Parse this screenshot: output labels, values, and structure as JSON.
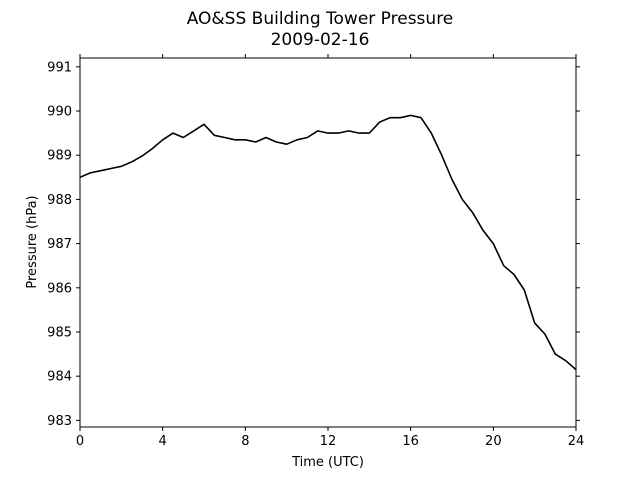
{
  "chart_data": {
    "type": "line",
    "title": "AO&SS Building Tower Pressure",
    "subtitle": "2009-02-16",
    "xlabel": "Time (UTC)",
    "ylabel": "Pressure (hPa)",
    "xlim": [
      0,
      24
    ],
    "ylim": [
      982.85,
      991.2
    ],
    "xticks": [
      0,
      4,
      8,
      12,
      16,
      20,
      24
    ],
    "yticks": [
      983,
      984,
      985,
      986,
      987,
      988,
      989,
      990,
      991
    ],
    "grid": false,
    "line_color": "#000000",
    "series": [
      {
        "x": [
          0,
          0.5,
          1,
          1.5,
          2,
          2.5,
          3,
          3.5,
          4,
          4.5,
          5,
          5.5,
          6,
          6.5,
          7,
          7.5,
          8,
          8.5,
          9,
          9.5,
          10,
          10.5,
          11,
          11.5,
          12,
          12.5,
          13,
          13.5,
          14,
          14.5,
          15,
          15.5,
          16,
          16.5,
          17,
          17.5,
          18,
          18.5,
          19,
          19.5,
          20,
          20.5,
          21,
          21.5,
          22,
          22.5,
          23,
          23.5,
          24
        ],
        "y": [
          988.5,
          988.6,
          988.65,
          988.7,
          988.75,
          988.85,
          988.98,
          989.15,
          989.35,
          989.5,
          989.4,
          989.55,
          989.7,
          989.45,
          989.4,
          989.35,
          989.35,
          989.3,
          989.4,
          989.3,
          989.25,
          989.35,
          989.4,
          989.55,
          989.5,
          989.5,
          989.55,
          989.5,
          989.5,
          989.75,
          989.85,
          989.85,
          989.9,
          989.85,
          989.5,
          989.0,
          988.45,
          988.0,
          987.7,
          987.3,
          987.0,
          986.5,
          986.3,
          985.95,
          985.2,
          984.95,
          984.5,
          984.35,
          984.15
        ]
      }
    ]
  }
}
